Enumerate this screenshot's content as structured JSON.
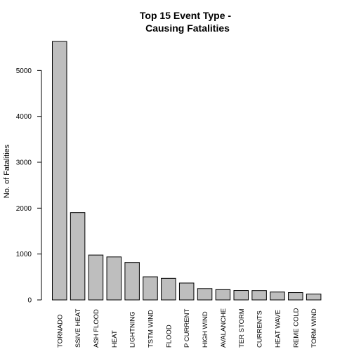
{
  "chart_data": {
    "type": "bar",
    "title_lines": [
      "Top 15 Event Type -",
      "Causing Fatalities"
    ],
    "xlabel": "",
    "ylabel": "No. of Fatalities",
    "categories": [
      "TORNADO",
      "SSIVE HEAT",
      "ASH FLOOD",
      "HEAT",
      "LIGHTNING",
      "TSTM WIND",
      "FLOOD",
      "P CURRENT",
      "HIGH WIND",
      "AVALANCHE",
      "TER STORM",
      "CURRENTS",
      "HEAT WAVE",
      "REME COLD",
      "TORM WIND"
    ],
    "values": [
      5633,
      1903,
      978,
      937,
      816,
      504,
      470,
      368,
      248,
      224,
      206,
      204,
      172,
      160,
      127
    ],
    "yticks": [
      0,
      1000,
      2000,
      3000,
      4000,
      5000
    ],
    "ylim": [
      0,
      5633
    ],
    "bar_color": "#bebebe",
    "edge_color": "#000000",
    "grid": false,
    "legend": "none"
  }
}
